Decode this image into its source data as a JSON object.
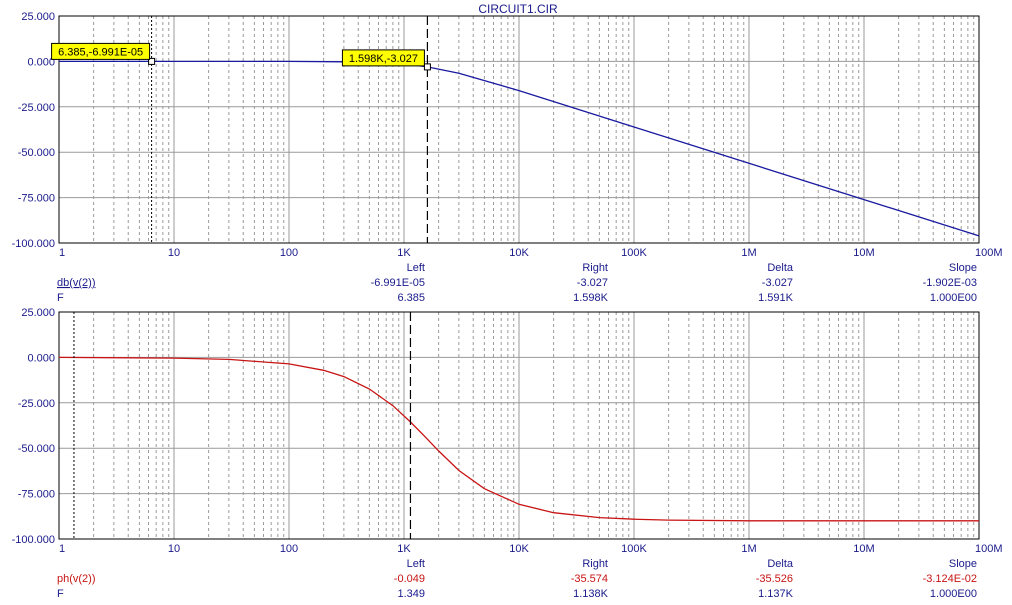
{
  "window_title": "CIRCUIT1.CIR",
  "colors": {
    "magnitude_curve": "#1a1aa0",
    "phase_curve": "#c81414",
    "axis_text": "#1a1a8c",
    "grid": "#9a9a9a",
    "frame": "#000000",
    "label_bg": "#ffff00"
  },
  "chart_data": [
    {
      "type": "line",
      "x_scale": "log",
      "xlim": [
        1,
        100000000
      ],
      "ylim": [
        -100,
        25
      ],
      "grid": true,
      "y_ticks": [
        "25.000",
        "0.000",
        "-25.000",
        "-50.000",
        "-75.000",
        "-100.000"
      ],
      "x_ticks": [
        "1",
        "10",
        "100",
        "1K",
        "10K",
        "100K",
        "1M",
        "10M",
        "100M"
      ],
      "series": [
        {
          "name": "db(v(2))",
          "x": [
            1,
            10,
            100,
            300,
            1000,
            1598,
            3000,
            10000,
            100000,
            1000000,
            10000000,
            100000000
          ],
          "y": [
            0,
            0,
            0,
            -0.2,
            -1.4,
            -3.027,
            -6.5,
            -16.1,
            -36.1,
            -56.1,
            -76.1,
            -96.1
          ]
        }
      ],
      "cursors": {
        "left_x": 6.385,
        "right_x": 1598,
        "left_label": "6.385,-6.991E-05",
        "right_label": "1.598K,-3.027"
      },
      "readout": {
        "headers": [
          "Left",
          "Right",
          "Delta",
          "Slope"
        ],
        "rows": [
          {
            "label": "db(v(2))",
            "values": [
              "-6.991E-05",
              "-3.027",
              "-3.027",
              "-1.902E-03"
            ]
          },
          {
            "label": "F",
            "values": [
              "6.385",
              "1.598K",
              "1.591K",
              "1.000E00"
            ]
          }
        ]
      }
    },
    {
      "type": "line",
      "x_scale": "log",
      "xlim": [
        1,
        100000000
      ],
      "ylim": [
        -100,
        25
      ],
      "grid": true,
      "y_ticks": [
        "25.000",
        "0.000",
        "-25.000",
        "-50.000",
        "-75.000",
        "-100.000"
      ],
      "x_ticks": [
        "1",
        "10",
        "100",
        "1K",
        "10K",
        "100K",
        "1M",
        "10M",
        "100M"
      ],
      "series": [
        {
          "name": "ph(v(2))",
          "x": [
            1,
            10,
            30,
            100,
            200,
            300,
            500,
            800,
            1138,
            1500,
            2000,
            3000,
            5000,
            10000,
            20000,
            50000,
            100000,
            200000,
            1000000,
            100000000
          ],
          "y": [
            0,
            -0.4,
            -1.1,
            -3.6,
            -7.1,
            -10.6,
            -17.4,
            -26.6,
            -35.6,
            -43.2,
            -51.5,
            -62.3,
            -72.3,
            -80.9,
            -85.5,
            -88.2,
            -89.1,
            -89.6,
            -90,
            -90
          ]
        }
      ],
      "cursors": {
        "left_x": 1.349,
        "right_x": 1138
      },
      "readout": {
        "headers": [
          "Left",
          "Right",
          "Delta",
          "Slope"
        ],
        "rows": [
          {
            "label": "ph(v(2))",
            "values": [
              "-0.049",
              "-35.574",
              "-35.526",
              "-3.124E-02"
            ]
          },
          {
            "label": "F",
            "values": [
              "1.349",
              "1.138K",
              "1.137K",
              "1.000E00"
            ]
          }
        ]
      }
    }
  ]
}
